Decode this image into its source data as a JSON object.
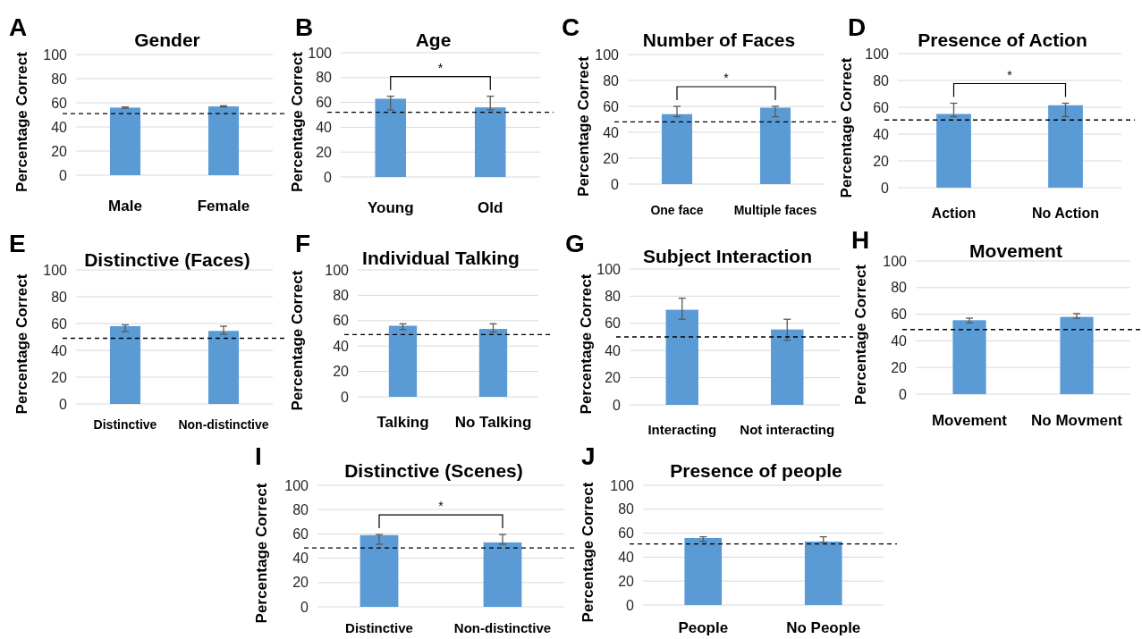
{
  "chart_data": [
    {
      "type": "bar",
      "title": "Gender",
      "ylabel": "Percentage Correct",
      "categories": [
        "Male",
        "Female"
      ],
      "values": [
        56,
        57
      ],
      "errors": [
        0.5,
        0.5
      ],
      "color": "#5b9bd5",
      "ylim": [
        0,
        100
      ],
      "yticks": [
        0,
        20,
        40,
        60,
        80,
        100
      ],
      "grid": "y",
      "ref_lines": [
        {
          "axis": "y",
          "value": 51,
          "line_style": "dashed",
          "color": "#000000"
        }
      ],
      "annotations": [
        "A"
      ]
    },
    {
      "type": "bar",
      "title": "Age",
      "ylabel": "Percentage Correct",
      "categories": [
        "Young",
        "Old"
      ],
      "values": [
        63,
        56
      ],
      "errors": [
        [
          54,
          65
        ],
        [
          54,
          65
        ]
      ],
      "color": "#5b9bd5",
      "ylim": [
        0,
        100
      ],
      "yticks": [
        0,
        20,
        40,
        60,
        80,
        100
      ],
      "grid": "y",
      "ref_lines": [
        {
          "axis": "y",
          "value": 52,
          "line_style": "dashed",
          "color": "#000000"
        }
      ],
      "annotations": [
        "B",
        "*"
      ]
    },
    {
      "type": "bar",
      "title": "Number of Faces",
      "ylabel": "Percentage Correct",
      "categories": [
        "One face",
        "Multiple faces"
      ],
      "values": [
        54,
        59
      ],
      "errors": [
        [
          52,
          60
        ],
        [
          52,
          60
        ]
      ],
      "color": "#5b9bd5",
      "ylim": [
        0,
        100
      ],
      "yticks": [
        0,
        20,
        40,
        60,
        80,
        100
      ],
      "grid": "y",
      "ref_lines": [
        {
          "axis": "y",
          "value": 48,
          "line_style": "dashed",
          "color": "#000000"
        }
      ],
      "annotations": [
        "C",
        "*"
      ]
    },
    {
      "type": "bar",
      "title": "Presence of Action",
      "ylabel": "Percentage Correct",
      "categories": [
        "Action",
        "No Action"
      ],
      "values": [
        55,
        61.5
      ],
      "errors": [
        [
          53,
          63
        ],
        [
          53,
          63
        ]
      ],
      "color": "#5b9bd5",
      "ylim": [
        0,
        100
      ],
      "yticks": [
        0,
        20,
        40,
        60,
        80,
        100
      ],
      "grid": "y",
      "ref_lines": [
        {
          "axis": "y",
          "value": 50.5,
          "line_style": "dashed",
          "color": "#000000"
        }
      ],
      "annotations": [
        "D",
        "*"
      ]
    },
    {
      "type": "bar",
      "title": "Distinctive (Faces)",
      "ylabel": "Percentage Correct",
      "categories": [
        "Distinctive",
        "Non-distinctive"
      ],
      "values": [
        58,
        54.5
      ],
      "errors": [
        [
          54,
          59
        ],
        [
          52,
          58
        ]
      ],
      "color": "#5b9bd5",
      "ylim": [
        0,
        100
      ],
      "yticks": [
        0,
        20,
        40,
        60,
        80,
        100
      ],
      "grid": "y",
      "ref_lines": [
        {
          "axis": "y",
          "value": 49,
          "line_style": "dashed",
          "color": "#000000"
        }
      ],
      "annotations": [
        "E"
      ]
    },
    {
      "type": "bar",
      "title": "Individual Talking",
      "ylabel": "Percentage Correct",
      "categories": [
        "Talking",
        "No Talking"
      ],
      "values": [
        56,
        53.5
      ],
      "errors": [
        [
          53,
          57.5
        ],
        [
          51,
          57.5
        ]
      ],
      "color": "#5b9bd5",
      "ylim": [
        0,
        100
      ],
      "yticks": [
        0,
        20,
        40,
        60,
        80,
        100
      ],
      "grid": "y",
      "ref_lines": [
        {
          "axis": "y",
          "value": 49,
          "line_style": "dashed",
          "color": "#000000"
        }
      ],
      "annotations": [
        "F"
      ]
    },
    {
      "type": "bar",
      "title": "Subject Interaction",
      "ylabel": "Percentage Correct",
      "categories": [
        "Interacting",
        "Not interacting"
      ],
      "values": [
        70,
        55.5
      ],
      "errors": [
        [
          63,
          78.5
        ],
        [
          47.5,
          63
        ]
      ],
      "color": "#5b9bd5",
      "ylim": [
        0,
        100
      ],
      "yticks": [
        0,
        20,
        40,
        60,
        80,
        100
      ],
      "grid": "y",
      "ref_lines": [
        {
          "axis": "y",
          "value": 50,
          "line_style": "dashed",
          "color": "#000000"
        }
      ],
      "annotations": [
        "G"
      ]
    },
    {
      "type": "bar",
      "title": "Movement",
      "ylabel": "Percentage Correct",
      "categories": [
        "Movement",
        "No Movment"
      ],
      "values": [
        55.5,
        58
      ],
      "errors": [
        [
          53.5,
          57
        ],
        [
          57,
          60.5
        ]
      ],
      "color": "#5b9bd5",
      "ylim": [
        0,
        100
      ],
      "yticks": [
        0,
        20,
        40,
        60,
        80,
        100
      ],
      "grid": "y",
      "ref_lines": [
        {
          "axis": "y",
          "value": 48.5,
          "line_style": "dashed",
          "color": "#000000"
        }
      ],
      "annotations": [
        "H"
      ]
    },
    {
      "type": "bar",
      "title": "Distinctive (Scenes)",
      "ylabel": "Percentage Correct",
      "categories": [
        "Distinctive",
        "Non-distinctive"
      ],
      "values": [
        59,
        53
      ],
      "errors": [
        [
          51.5,
          59.5
        ],
        [
          51.5,
          59.5
        ]
      ],
      "color": "#5b9bd5",
      "ylim": [
        0,
        100
      ],
      "yticks": [
        0,
        20,
        40,
        60,
        80,
        100
      ],
      "grid": "y",
      "ref_lines": [
        {
          "axis": "y",
          "value": 48.5,
          "line_style": "dashed",
          "color": "#000000"
        }
      ],
      "annotations": [
        "I",
        "*"
      ]
    },
    {
      "type": "bar",
      "title": "Presence of people",
      "ylabel": "Percentage Correct",
      "categories": [
        "People",
        "No People"
      ],
      "values": [
        56,
        53
      ],
      "errors": [
        [
          53,
          57
        ],
        [
          52.5,
          57
        ]
      ],
      "color": "#5b9bd5",
      "ylim": [
        0,
        100
      ],
      "yticks": [
        0,
        20,
        40,
        60,
        80,
        100
      ],
      "grid": "y",
      "ref_lines": [
        {
          "axis": "y",
          "value": 51,
          "line_style": "dashed",
          "color": "#000000"
        }
      ],
      "annotations": [
        "J"
      ]
    }
  ]
}
